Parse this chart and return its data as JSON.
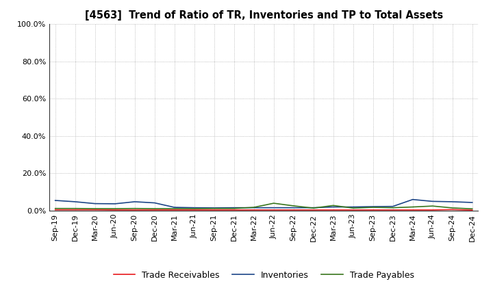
{
  "title": "[4563]  Trend of Ratio of TR, Inventories and TP to Total Assets",
  "x_labels": [
    "Sep-19",
    "Dec-19",
    "Mar-20",
    "Jun-20",
    "Sep-20",
    "Dec-20",
    "Mar-21",
    "Jun-21",
    "Sep-21",
    "Dec-21",
    "Mar-22",
    "Jun-22",
    "Sep-22",
    "Dec-22",
    "Mar-23",
    "Jun-23",
    "Sep-23",
    "Dec-23",
    "Mar-24",
    "Jun-24",
    "Sep-24",
    "Dec-24"
  ],
  "trade_receivables": [
    0.005,
    0.005,
    0.005,
    0.004,
    0.004,
    0.004,
    0.004,
    0.004,
    0.004,
    0.004,
    0.004,
    0.004,
    0.004,
    0.004,
    0.004,
    0.004,
    0.004,
    0.004,
    0.004,
    0.004,
    0.006,
    0.003
  ],
  "inventories": [
    0.055,
    0.048,
    0.038,
    0.037,
    0.048,
    0.042,
    0.018,
    0.016,
    0.015,
    0.016,
    0.016,
    0.016,
    0.016,
    0.016,
    0.02,
    0.02,
    0.022,
    0.023,
    0.06,
    0.05,
    0.048,
    0.044
  ],
  "trade_payables": [
    0.012,
    0.012,
    0.011,
    0.011,
    0.012,
    0.011,
    0.011,
    0.011,
    0.012,
    0.012,
    0.018,
    0.04,
    0.026,
    0.014,
    0.028,
    0.014,
    0.018,
    0.016,
    0.02,
    0.025,
    0.015,
    0.01
  ],
  "ylim": [
    0.0,
    1.0
  ],
  "yticks": [
    0.0,
    0.2,
    0.4,
    0.6,
    0.8,
    1.0
  ],
  "color_tr": "#e8191c",
  "color_inv": "#1c4587",
  "color_tp": "#38761d",
  "legend_labels": [
    "Trade Receivables",
    "Inventories",
    "Trade Payables"
  ],
  "background_color": "#ffffff",
  "grid_color": "#888888"
}
